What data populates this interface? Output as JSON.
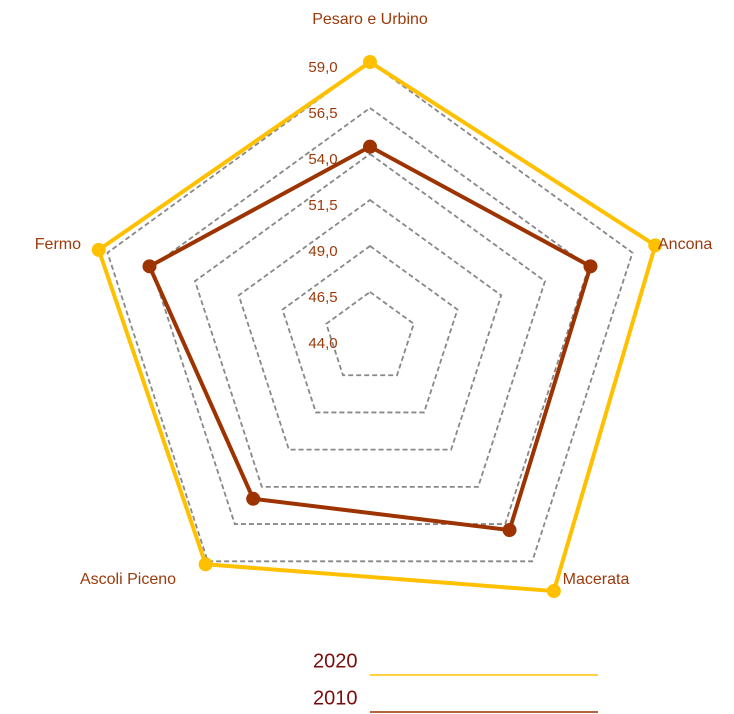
{
  "chart_data": {
    "type": "radar",
    "categories": [
      "Pesaro e Urbino",
      "Ancona",
      "Macerata",
      "Ascoli Piceno",
      "Fermo"
    ],
    "series": [
      {
        "name": "2020",
        "color": "#ffc000",
        "values": [
          59.0,
          60.3,
          61.0,
          59.2,
          59.5
        ]
      },
      {
        "name": "2010",
        "color": "#9c3300",
        "values": [
          54.4,
          56.6,
          56.9,
          54.8,
          56.6
        ]
      }
    ],
    "ylim": [
      44.0,
      59.0
    ],
    "yticks": [
      {
        "value": 44.0,
        "label": "44,0"
      },
      {
        "value": 46.5,
        "label": "46,5"
      },
      {
        "value": 49.0,
        "label": "49,0"
      },
      {
        "value": 51.5,
        "label": "51,5"
      },
      {
        "value": 54.0,
        "label": "54,0"
      },
      {
        "value": 56.5,
        "label": "56,5"
      },
      {
        "value": 59.0,
        "label": "59,0"
      }
    ],
    "grid": true
  }
}
